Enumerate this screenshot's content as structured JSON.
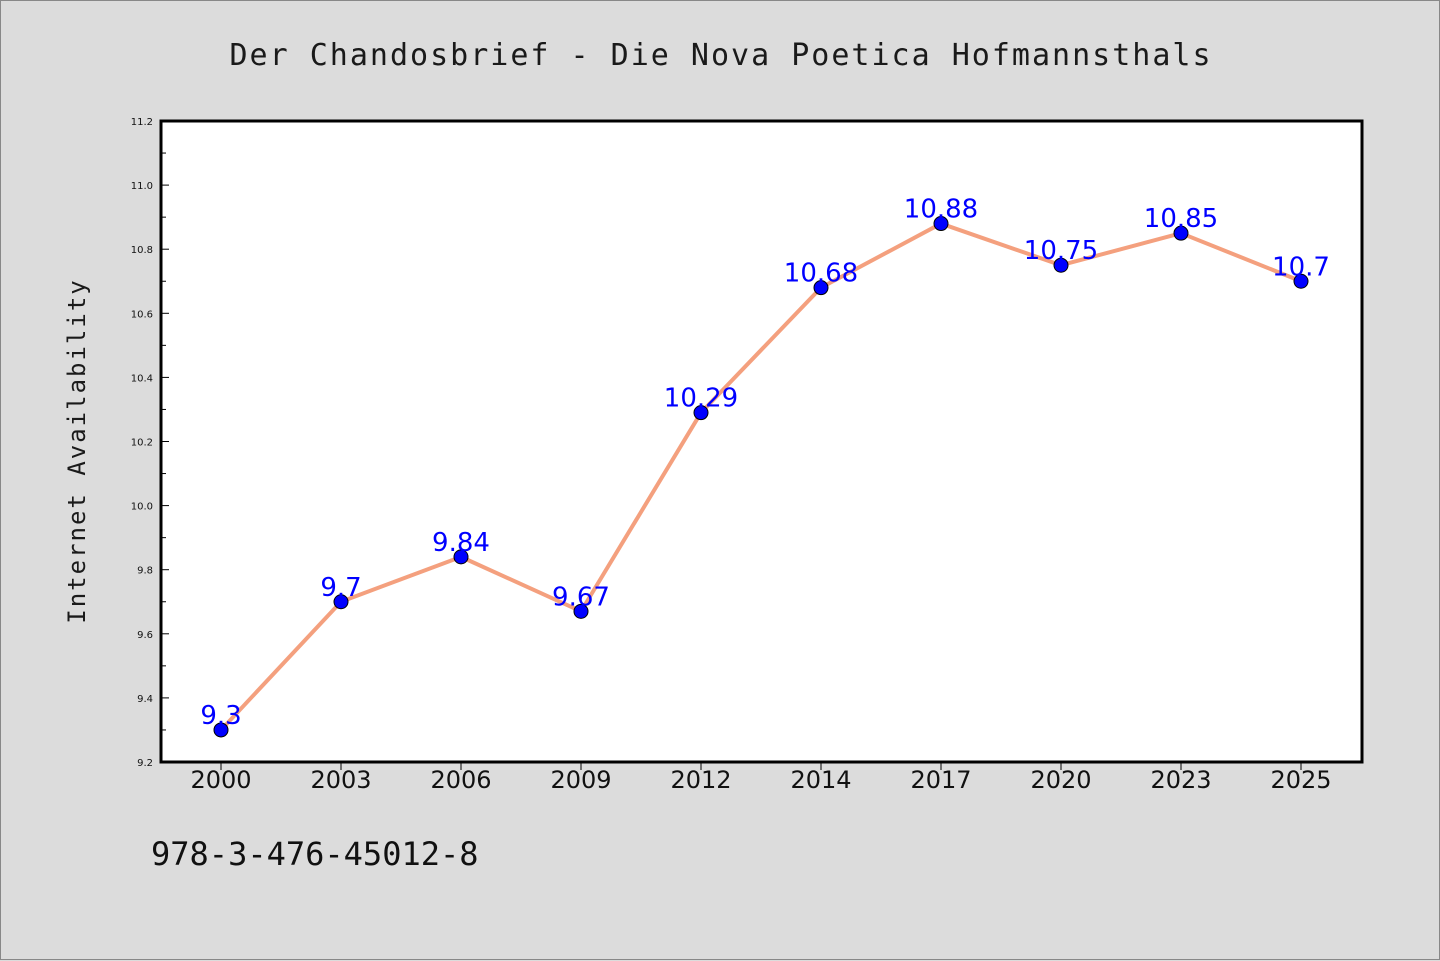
{
  "chart_data": {
    "type": "line",
    "title": "Der Chandosbrief - Die Nova Poetica Hofmannsthals",
    "xlabel": "",
    "ylabel": "Internet Availability",
    "categories": [
      "2000",
      "2003",
      "2006",
      "2009",
      "2012",
      "2014",
      "2017",
      "2020",
      "2023",
      "2025"
    ],
    "values": [
      9.3,
      9.7,
      9.84,
      9.67,
      10.29,
      10.68,
      10.88,
      10.75,
      10.85,
      10.7
    ],
    "data_labels": [
      "9.3",
      "9.7",
      "9.84",
      "9.67",
      "10.29",
      "10.68",
      "10.88",
      "10.75",
      "10.85",
      "10.7"
    ],
    "ylim": [
      9.2,
      11.2
    ],
    "yticks": [
      "9.2",
      "9.4",
      "9.6",
      "9.8",
      "10.0",
      "10.2",
      "10.4",
      "10.6",
      "10.8",
      "11.0",
      "11.2"
    ],
    "grid": false,
    "line_color": "#f4a07e",
    "marker_color": "#0000ff",
    "label_color": "#0000ff",
    "plot_background": "#ffffff",
    "figure_background": "#dcdcdc"
  },
  "footer": {
    "isbn": "978-3-476-45012-8"
  }
}
